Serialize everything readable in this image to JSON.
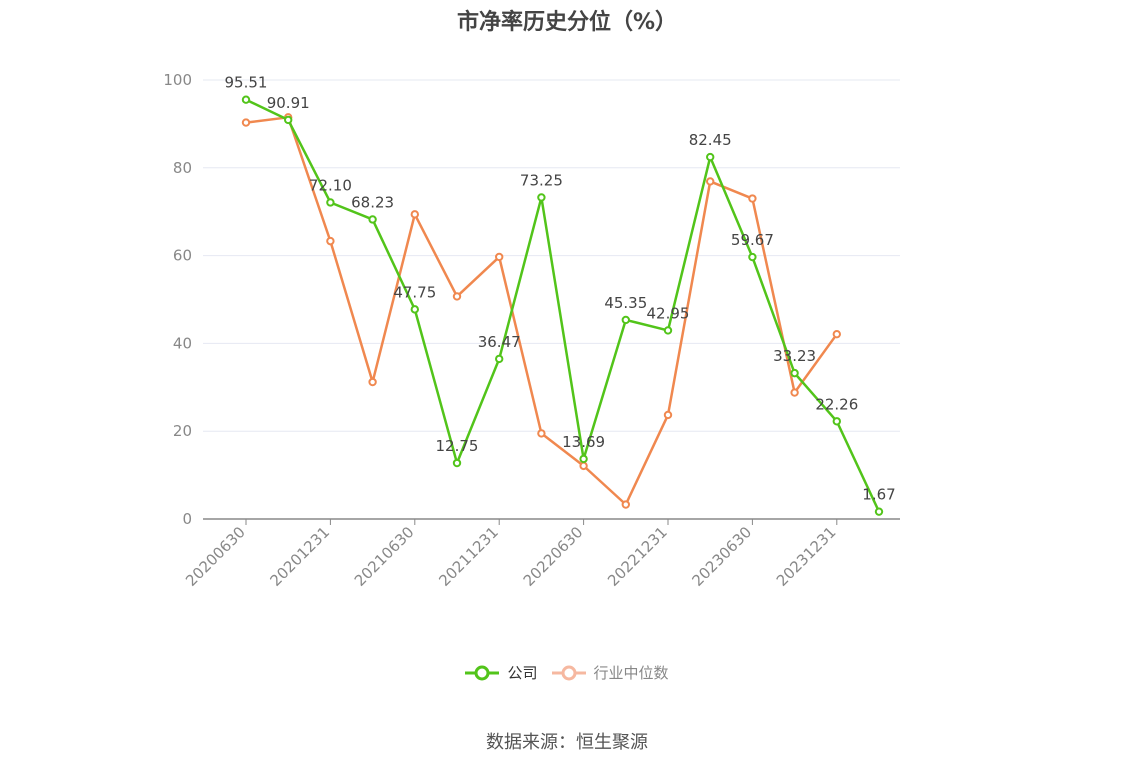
{
  "title": "市净率历史分位（%）",
  "source": "数据来源：恒生聚源",
  "colors": {
    "company": "#52c41a",
    "industry": "#f0884f",
    "grid": "#e6e8f2",
    "axis": "#888888"
  },
  "chart_data": {
    "type": "line",
    "title": "市净率历史分位（%）",
    "ylim": [
      0,
      100
    ],
    "yticks": [
      0,
      20,
      40,
      60,
      80,
      100
    ],
    "x": [
      "20200630",
      "20200930",
      "20201231",
      "20210331",
      "20210630",
      "20210930",
      "20211231",
      "20220331",
      "20220630",
      "20220930",
      "20221231",
      "20230331",
      "20230630",
      "20230930",
      "20231231",
      "20240331"
    ],
    "xtick_labels": [
      "20200630",
      "20201231",
      "20210630",
      "20211231",
      "20220630",
      "20221231",
      "20230630",
      "20231231"
    ],
    "grid": true,
    "legend": "bottom-center",
    "series": [
      {
        "name": "公司",
        "values": [
          95.51,
          90.91,
          72.1,
          68.23,
          47.75,
          12.75,
          36.47,
          73.25,
          13.69,
          45.35,
          42.95,
          82.45,
          59.67,
          33.23,
          22.26,
          1.67
        ],
        "labels": [
          "95.51",
          "90.91",
          "72.10",
          "68.23",
          "47.75",
          "12.75",
          "36.47",
          "73.25",
          "13.69",
          "45.35",
          "42.95",
          "82.45",
          "59.67",
          "33.23",
          "22.26",
          "1.67"
        ]
      },
      {
        "name": "行业中位数",
        "values": [
          90.3,
          91.5,
          63.3,
          31.2,
          69.4,
          50.7,
          59.7,
          19.5,
          12.1,
          3.3,
          23.7,
          76.9,
          73.0,
          28.8,
          42.1,
          null
        ]
      }
    ]
  }
}
